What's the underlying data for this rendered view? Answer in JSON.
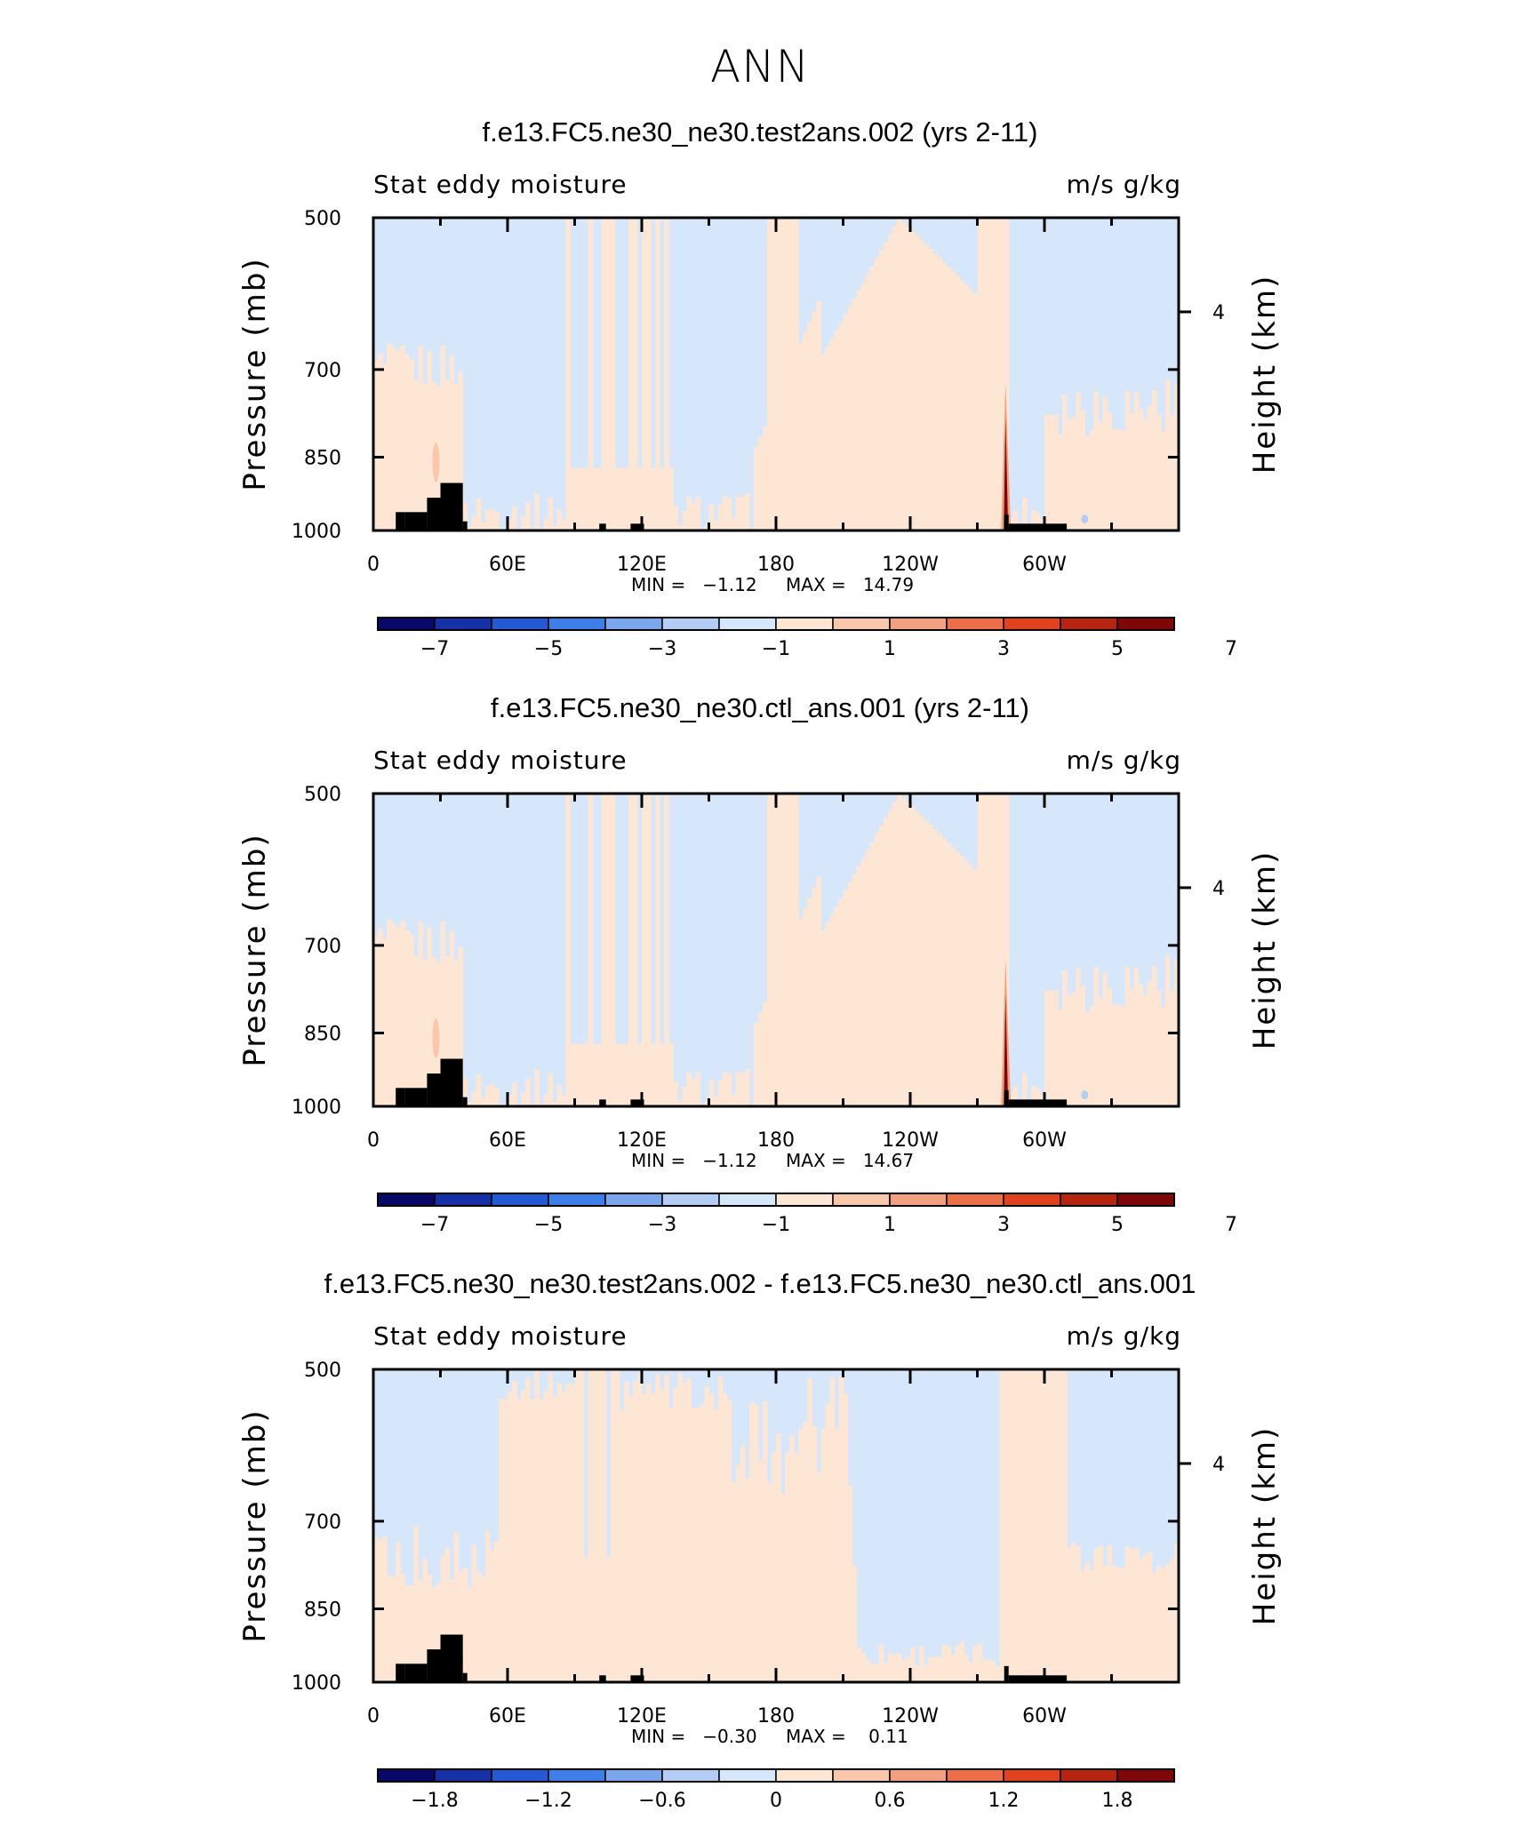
{
  "figure": {
    "title": "ANN"
  },
  "colors": {
    "palette": [
      "#08086b",
      "#1531a8",
      "#2459d6",
      "#3d7fe8",
      "#7aa6ee",
      "#b3cdf4",
      "#d6e7fb",
      "#fde7d4",
      "#f8c7ac",
      "#f3a07f",
      "#ee6e47",
      "#e2411d",
      "#b8250e",
      "#7f0606"
    ],
    "topography": "#000000"
  },
  "chart_data": [
    {
      "type": "heatmap",
      "title": "f.e13.FC5.ne30_ne30.test2ans.002 (yrs 2-11)",
      "left_label": "Stat eddy moisture",
      "right_label": "m/s g/kg",
      "ylabel": "Pressure (mb)",
      "ylabel_right": "Height (km)",
      "yticks": [
        "500",
        "700",
        "850",
        "1000"
      ],
      "yticks_right": [
        "4"
      ],
      "xticks": [
        "0",
        "60E",
        "120E",
        "180",
        "120W",
        "60W"
      ],
      "xlim": [
        0,
        360
      ],
      "ylim": [
        1000,
        500
      ],
      "min_text": "MIN =   −1.12",
      "max_text": "MAX =   14.79",
      "colorbar_labels": [
        "−7",
        "−5",
        "−3",
        "−1",
        "1",
        "3",
        "5",
        "7"
      ],
      "field": "full",
      "value_range": [
        -1.12,
        14.79
      ]
    },
    {
      "type": "heatmap",
      "title": "f.e13.FC5.ne30_ne30.ctl_ans.001 (yrs 2-11)",
      "left_label": "Stat eddy moisture",
      "right_label": "m/s g/kg",
      "ylabel": "Pressure (mb)",
      "ylabel_right": "Height (km)",
      "yticks": [
        "500",
        "700",
        "850",
        "1000"
      ],
      "yticks_right": [
        "4"
      ],
      "xticks": [
        "0",
        "60E",
        "120E",
        "180",
        "120W",
        "60W"
      ],
      "xlim": [
        0,
        360
      ],
      "ylim": [
        1000,
        500
      ],
      "min_text": "MIN =   −1.12",
      "max_text": "MAX =   14.67",
      "colorbar_labels": [
        "−7",
        "−5",
        "−3",
        "−1",
        "1",
        "3",
        "5",
        "7"
      ],
      "field": "full",
      "value_range": [
        -1.12,
        14.67
      ]
    },
    {
      "type": "heatmap",
      "title": "f.e13.FC5.ne30_ne30.test2ans.002 - f.e13.FC5.ne30_ne30.ctl_ans.001",
      "left_label": "Stat eddy moisture",
      "right_label": "m/s g/kg",
      "ylabel": "Pressure (mb)",
      "ylabel_right": "Height (km)",
      "yticks": [
        "500",
        "700",
        "850",
        "1000"
      ],
      "yticks_right": [
        "4"
      ],
      "xticks": [
        "0",
        "60E",
        "120E",
        "180",
        "120W",
        "60W"
      ],
      "xlim": [
        0,
        360
      ],
      "ylim": [
        1000,
        500
      ],
      "min_text": "MIN =   −0.30",
      "max_text": "MAX =    0.11",
      "colorbar_labels": [
        "−1.8",
        "−1.2",
        "−0.6",
        "0",
        "0.6",
        "1.2",
        "1.8"
      ],
      "field": "diff",
      "value_range": [
        -0.3,
        0.11
      ]
    }
  ]
}
